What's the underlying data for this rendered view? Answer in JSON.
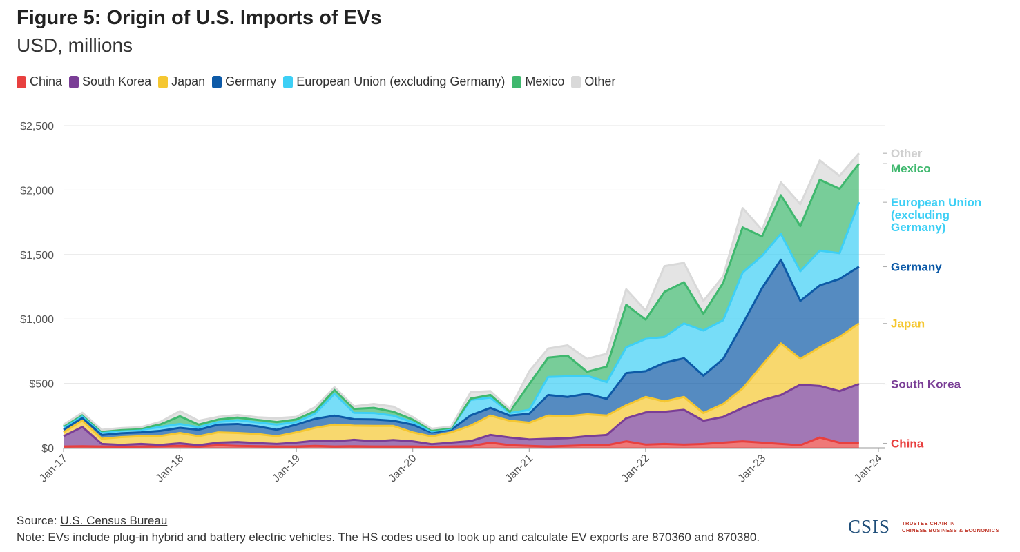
{
  "title": "Figure 5: Origin of U.S. Imports of EVs",
  "subtitle": "USD, millions",
  "legend": [
    {
      "name": "China",
      "color": "#e8403f"
    },
    {
      "name": "South Korea",
      "color": "#7a3e96"
    },
    {
      "name": "Japan",
      "color": "#f5c731"
    },
    {
      "name": "Germany",
      "color": "#0d5aa7"
    },
    {
      "name": "European Union (excluding Germany)",
      "color": "#3dcff5"
    },
    {
      "name": "Mexico",
      "color": "#3fb86e"
    },
    {
      "name": "Other",
      "color": "#d9d9d9"
    }
  ],
  "source_label": "Source:",
  "source_link": "U.S. Census Bureau",
  "note": "Note: EVs include plug-in hybrid and battery electric vehicles. The HS codes used to look up and calculate EV exports are 870360 and 870380.",
  "logo": {
    "mark": "CSIS",
    "line1": "TRUSTEE CHAIR IN",
    "line2": "CHINESE BUSINESS & ECONOMICS"
  },
  "chart_data": {
    "type": "area",
    "stacked": true,
    "x": [
      "2017-01",
      "2017-03",
      "2017-05",
      "2017-07",
      "2017-09",
      "2017-11",
      "2018-01",
      "2018-03",
      "2018-05",
      "2018-07",
      "2018-09",
      "2018-11",
      "2019-01",
      "2019-03",
      "2019-05",
      "2019-07",
      "2019-09",
      "2019-11",
      "2020-01",
      "2020-03",
      "2020-05",
      "2020-07",
      "2020-09",
      "2020-11",
      "2021-01",
      "2021-03",
      "2021-05",
      "2021-07",
      "2021-09",
      "2021-11",
      "2022-01",
      "2022-03",
      "2022-05",
      "2022-07",
      "2022-09",
      "2022-11",
      "2023-01",
      "2023-03",
      "2023-05",
      "2023-07",
      "2023-09",
      "2023-11"
    ],
    "xticks": [
      "Jan-17",
      "Jan-18",
      "Jan-19",
      "Jan-20",
      "Jan-21",
      "Jan-22",
      "Jan-23",
      "Jan-24"
    ],
    "ylim": [
      0,
      2500
    ],
    "yticks": [
      "$0",
      "$500",
      "$1,000",
      "$1,500",
      "$2,000",
      "$2,500"
    ],
    "grid": true,
    "legend_position": "top-left",
    "series": [
      {
        "name": "China",
        "end_label": "China",
        "color": "#e8403f",
        "values": [
          10,
          12,
          10,
          8,
          10,
          12,
          15,
          10,
          20,
          15,
          12,
          10,
          10,
          15,
          10,
          12,
          10,
          10,
          10,
          8,
          10,
          12,
          40,
          20,
          15,
          10,
          15,
          20,
          20,
          50,
          25,
          30,
          25,
          30,
          40,
          50,
          40,
          30,
          20,
          80,
          40,
          35
        ]
      },
      {
        "name": "South Korea",
        "end_label": "South Korea",
        "color": "#7a3e96",
        "values": [
          80,
          150,
          20,
          15,
          20,
          10,
          20,
          10,
          20,
          30,
          25,
          20,
          30,
          40,
          40,
          50,
          40,
          50,
          40,
          20,
          30,
          40,
          60,
          60,
          50,
          60,
          60,
          70,
          80,
          180,
          250,
          250,
          270,
          180,
          200,
          260,
          330,
          380,
          470,
          400,
          400,
          460
        ]
      },
      {
        "name": "Japan",
        "end_label": "Japan",
        "color": "#f5c731",
        "values": [
          30,
          50,
          40,
          60,
          60,
          70,
          80,
          70,
          80,
          70,
          70,
          60,
          80,
          100,
          130,
          110,
          120,
          110,
          70,
          60,
          80,
          120,
          150,
          130,
          130,
          180,
          170,
          170,
          150,
          100,
          120,
          80,
          100,
          60,
          100,
          150,
          270,
          400,
          200,
          300,
          420,
          470
        ]
      },
      {
        "name": "Germany",
        "end_label": "Germany",
        "color": "#0d5aa7",
        "values": [
          20,
          20,
          30,
          30,
          30,
          40,
          40,
          50,
          60,
          70,
          60,
          50,
          60,
          70,
          70,
          50,
          50,
          40,
          60,
          30,
          20,
          80,
          60,
          40,
          70,
          160,
          150,
          160,
          130,
          250,
          200,
          300,
          300,
          290,
          350,
          500,
          600,
          650,
          450,
          480,
          450,
          440
        ]
      },
      {
        "name": "European Union (excluding Germany)",
        "end_label": "European Union (excluding Germany)",
        "color": "#3dcff5",
        "values": [
          20,
          20,
          20,
          20,
          20,
          30,
          30,
          20,
          20,
          30,
          30,
          40,
          20,
          40,
          170,
          50,
          50,
          40,
          20,
          10,
          10,
          120,
          80,
          20,
          30,
          140,
          160,
          140,
          130,
          200,
          250,
          200,
          270,
          350,
          300,
          400,
          250,
          200,
          230,
          270,
          200,
          500
        ]
      },
      {
        "name": "Mexico",
        "end_label": "Mexico",
        "color": "#3fb86e",
        "values": [
          10,
          10,
          10,
          10,
          10,
          20,
          60,
          20,
          20,
          20,
          20,
          20,
          20,
          20,
          30,
          30,
          40,
          30,
          20,
          10,
          5,
          10,
          20,
          10,
          200,
          150,
          160,
          30,
          120,
          330,
          150,
          350,
          320,
          130,
          290,
          350,
          150,
          300,
          350,
          550,
          500,
          300
        ]
      },
      {
        "name": "Other",
        "end_label": "Other",
        "color": "#d9d9d9",
        "values": [
          10,
          10,
          10,
          10,
          10,
          20,
          40,
          30,
          20,
          20,
          20,
          30,
          20,
          30,
          20,
          20,
          30,
          40,
          20,
          10,
          10,
          50,
          30,
          20,
          100,
          70,
          80,
          100,
          100,
          120,
          70,
          200,
          150,
          100,
          50,
          150,
          50,
          100,
          170,
          150,
          100,
          80
        ]
      }
    ]
  }
}
